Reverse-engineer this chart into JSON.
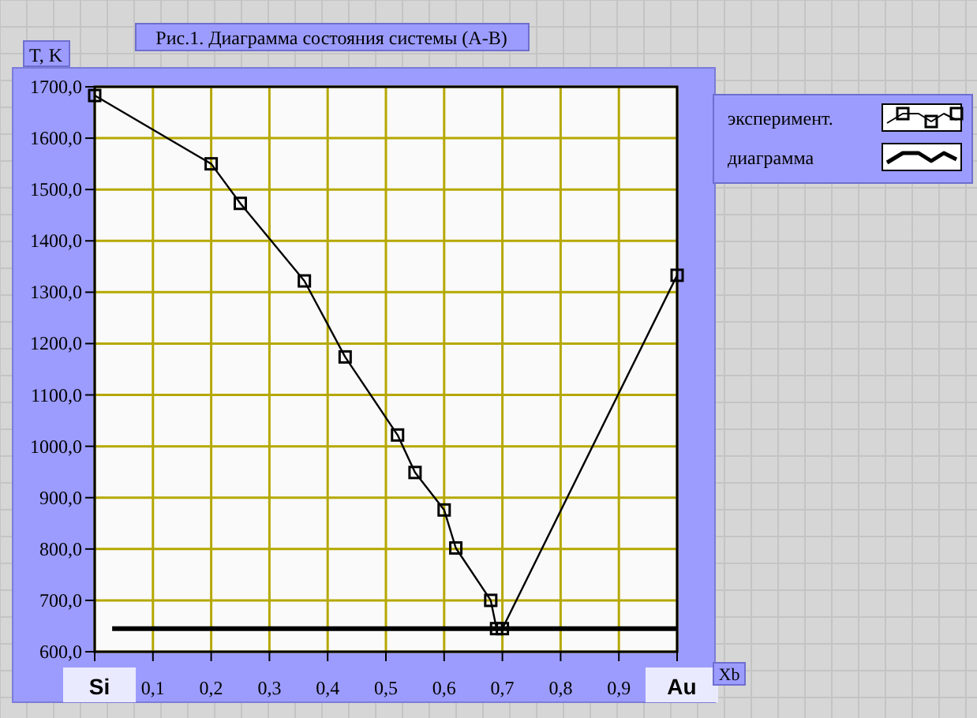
{
  "chart_data": {
    "type": "line",
    "title": "Рис.1. Диаграмма состояния системы (A-B)",
    "ylabel": "T, K",
    "xlabel": "Xb",
    "xlim": [
      0,
      1
    ],
    "ylim": [
      600,
      1700
    ],
    "xticks": [
      {
        "value": 0,
        "label": "Si"
      },
      {
        "value": 0.1,
        "label": "0,1"
      },
      {
        "value": 0.2,
        "label": "0,2"
      },
      {
        "value": 0.3,
        "label": "0,3"
      },
      {
        "value": 0.4,
        "label": "0,4"
      },
      {
        "value": 0.5,
        "label": "0,5"
      },
      {
        "value": 0.6,
        "label": "0,6"
      },
      {
        "value": 0.7,
        "label": "0,7"
      },
      {
        "value": 0.8,
        "label": "0,8"
      },
      {
        "value": 0.9,
        "label": "0,9"
      },
      {
        "value": 1,
        "label": "Au"
      }
    ],
    "yticks": [
      {
        "value": 600,
        "label": "600,0"
      },
      {
        "value": 700,
        "label": "700,0"
      },
      {
        "value": 800,
        "label": "800,0"
      },
      {
        "value": 900,
        "label": "900,0"
      },
      {
        "value": 1000,
        "label": "1000,0"
      },
      {
        "value": 1100,
        "label": "1100,0"
      },
      {
        "value": 1200,
        "label": "1200,0"
      },
      {
        "value": 1300,
        "label": "1300,0"
      },
      {
        "value": 1400,
        "label": "1400,0"
      },
      {
        "value": 1500,
        "label": "1500,0"
      },
      {
        "value": 1600,
        "label": "1600,0"
      },
      {
        "value": 1700,
        "label": "1700,0"
      }
    ],
    "grid": true,
    "legend": "top right",
    "series": [
      {
        "name": "эксперимент.",
        "color": "#000000",
        "marker": "square",
        "line_style": "solid",
        "x": [
          0,
          0.2,
          0.25,
          0.36,
          0.43,
          0.52,
          0.55,
          0.6,
          0.62,
          0.68,
          0.69,
          0.7,
          1
        ],
        "values": [
          1683,
          1550,
          1473,
          1322,
          1174,
          1022,
          949,
          876,
          802,
          700,
          645,
          645,
          1333
        ]
      },
      {
        "name": "диаграмма",
        "color": "#000000",
        "marker": "none",
        "line_style": "solid",
        "x": [
          0.03,
          1
        ],
        "values": [
          645,
          645
        ]
      }
    ]
  }
}
